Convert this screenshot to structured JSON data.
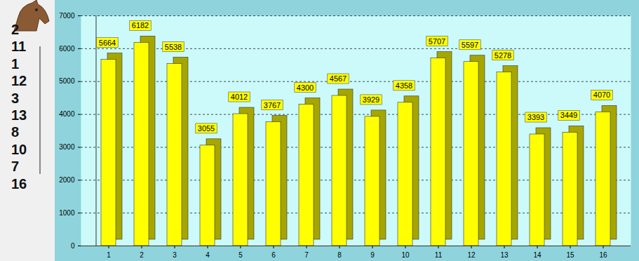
{
  "chart_data": {
    "type": "bar",
    "categories": [
      "1",
      "2",
      "3",
      "4",
      "5",
      "6",
      "7",
      "8",
      "9",
      "10",
      "11",
      "12",
      "13",
      "14",
      "15",
      "16"
    ],
    "values": [
      5664,
      6182,
      5538,
      3055,
      4012,
      3767,
      4300,
      4567,
      3929,
      4358,
      5707,
      5597,
      5278,
      3393,
      3449,
      4070
    ],
    "color": "#ffff00",
    "ylim": [
      0,
      7000
    ],
    "yticks": [
      0,
      1000,
      2000,
      3000,
      4000,
      5000,
      6000,
      7000
    ],
    "grid": true,
    "data_labels": true
  },
  "ranking": [
    2,
    11,
    1,
    12,
    3,
    13,
    8,
    10,
    7,
    16
  ]
}
